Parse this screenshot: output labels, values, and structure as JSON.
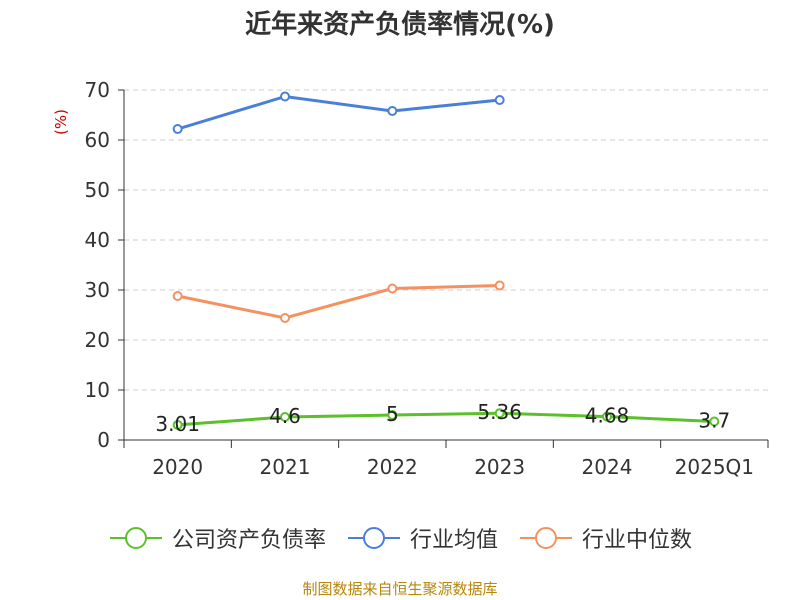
{
  "chart_data": {
    "type": "line",
    "title": "近年来资产负债率情况(%)",
    "ylabel": "(%)",
    "xlabel": "",
    "categories": [
      "2020",
      "2021",
      "2022",
      "2023",
      "2024",
      "2025Q1"
    ],
    "ylim": [
      0,
      70
    ],
    "yticks": [
      "0",
      "10",
      "20",
      "30",
      "40",
      "50",
      "60",
      "70"
    ],
    "grid": true,
    "legend_position": "bottom",
    "series": [
      {
        "name": "公司资产负债率",
        "color": "#5ac12a",
        "values": [
          3.01,
          4.6,
          5,
          5.36,
          4.68,
          3.7
        ],
        "labels": [
          "3.01",
          "4.6",
          "5",
          "5.36",
          "4.68",
          "3.7"
        ]
      },
      {
        "name": "行业均值",
        "color": "#4a7fd8",
        "values": [
          62.2,
          68.7,
          65.8,
          68.0,
          null,
          null
        ]
      },
      {
        "name": "行业中位数",
        "color": "#f5915f",
        "values": [
          28.8,
          24.4,
          30.3,
          30.9,
          null,
          null
        ]
      }
    ]
  },
  "source": "制图数据来自恒生聚源数据库"
}
